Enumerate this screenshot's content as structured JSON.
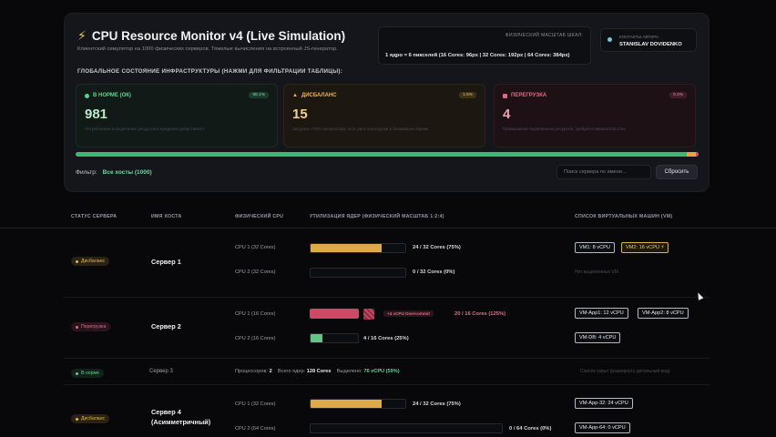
{
  "header": {
    "title": "CPU Resource Monitor v4 (Live Simulation)",
    "subtitle": "Клиентский симулятор на 1000 физических серверов. Тяжелые вычисления на встроенный JS-генератор.",
    "scale_label": "ФИЗИЧЕСКИЙ МАСШТАБ ШКАЛ:",
    "scale_value": "1 ядро = 6 пикселей (16 Cores: 96px | 32 Cores: 192px | 64 Cores: 384px)",
    "author_label": "КОНТАКТЫ АВТОРА",
    "author_name": "STANISLAV DOVIDENKO"
  },
  "overview": {
    "section_title": "ГЛОБАЛЬНОЕ СОСТОЯНИЕ ИНФРАСТРУКТУРЫ (НАЖМИ ДЛЯ ФИЛЬТРАЦИИ ТАБЛИЦЫ):",
    "cards": [
      {
        "label": "В НОРМЕ (ОК)",
        "pct": "98.1%",
        "count": "981",
        "desc": "Потребление и выделение ресурсов в пределах допустимого"
      },
      {
        "label": "ДИСБАЛАНС",
        "pct": "1.5%",
        "count": "15",
        "desc": "Загрузка >75% процессора, есть риск перегрузки в ближайшее время"
      },
      {
        "label": "ПЕРЕГРУЗКА",
        "pct": "0.4%",
        "count": "4",
        "desc": "Превышение выделенных ресурсов, требуется вмешательство"
      }
    ],
    "progress": {
      "ok": 98.1,
      "warn": 1.5,
      "over": 0.4
    }
  },
  "filter": {
    "label": "Фильтр:",
    "value": "Все хосты (1000)",
    "search_placeholder": "Поиск сервера по имени...",
    "reset_label": "Сбросить"
  },
  "table": {
    "headers": [
      "СТАТУС СЕРВЕРА",
      "ИМЯ ХОСТА",
      "ФИЗИЧЕСКИЙ CPU",
      "УТИЛИЗАЦИЯ ЯДЕР (ФИЗИЧЕСКИЙ МАСШТАБ 1:2:4)",
      "СПИСОК ВИРТУАЛЬНЫХ МАШИН (VM)"
    ],
    "rows": [
      {
        "status": "Дисбаланс",
        "host": "Сервер 1",
        "cpus": [
          {
            "label": "CPU 1 (32 Cores)",
            "usage": "24 / 32 Cores (75%)",
            "fill": 0.75,
            "vms": [
              "VM1: 8 vCPU",
              "VM2: 16 vCPU ⚡"
            ]
          },
          {
            "label": "CPU 2 (32 Cores)",
            "usage": "0 / 32 Cores (0%)",
            "fill": 0,
            "vms_empty": "Нет выделенных VM"
          }
        ]
      },
      {
        "status": "Перегрузка",
        "host": "Сервер 2",
        "cpus": [
          {
            "label": "CPU 1 (16 Cores)",
            "usage": "20 / 16 Cores (125%)",
            "fill": 1,
            "overflow": "+4 vCPU Overcommit",
            "vms": [
              "VM-App1: 12 vCPU",
              "VM-App2: 8 vCPU"
            ]
          },
          {
            "label": "CPU 2 (16 Cores)",
            "usage": "4 / 16 Cores (25%)",
            "fill": 0.25,
            "vms": [
              "VM-DB: 4 vCPU"
            ]
          }
        ]
      },
      {
        "status": "В норме",
        "host": "Сервер 3",
        "meta": {
          "cpus_label": "Процессоров:",
          "cpus": "2",
          "cores_label": "Всего ядер:",
          "cores": "128 Cores",
          "alloc_label": "Выделено:",
          "alloc": "76 vCPU (59%)"
        },
        "vms_note": "Список скрыт (развернуть детальный вид)"
      },
      {
        "status": "Дисбаланс",
        "host": "Сервер 4 (Асимметричный)",
        "cpus": [
          {
            "label": "CPU 1 (32 Cores)",
            "usage": "24 / 32 Cores (75%)",
            "fill": 0.75,
            "vms": [
              "VM-App-32: 24 vCPU"
            ]
          },
          {
            "label": "CPU 2 (64 Cores)",
            "usage": "0 / 64 Cores (0%)",
            "fill": 0,
            "vms": [
              "VM-App-64: 0 vCPU"
            ]
          }
        ]
      }
    ]
  },
  "colors": {
    "ok": "#3fb774",
    "warn": "#e0a93e",
    "over": "#d6506e",
    "bg": "#08080b"
  },
  "icons": {
    "title": "lightning-icon"
  }
}
